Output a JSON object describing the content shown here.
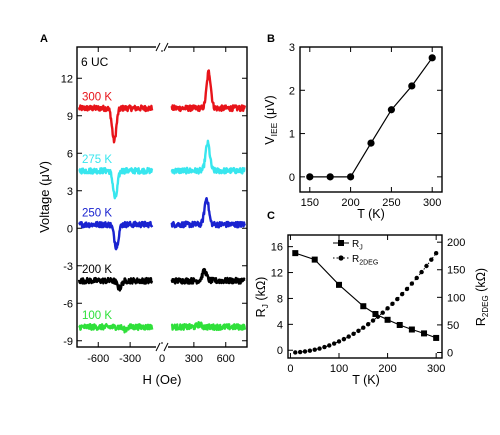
{
  "chart_data": [
    {
      "panel": "A",
      "type": "line",
      "annotation": "6 UC",
      "xlabel": "H (Oe)",
      "ylabel": "Voltage (μV)",
      "xlim": [
        -800,
        800
      ],
      "ylim": [
        -9.5,
        14.5
      ],
      "x_ticks": [
        -600,
        -300,
        0,
        300,
        600
      ],
      "x_tick_labels": [
        "-600",
        "-300",
        "0",
        "300",
        "600"
      ],
      "y_ticks": [
        -9,
        -6,
        -3,
        0,
        3,
        6,
        9,
        12
      ],
      "y_tick_labels": [
        "-9",
        "-6",
        "-3",
        "0",
        "3",
        "6",
        "9",
        "12"
      ],
      "axis_break": "//",
      "series": [
        {
          "name": "300 K",
          "color": "#e8141a",
          "baseline": 9.6,
          "dip_x": -450,
          "dip": -2.6,
          "peak_x": 440,
          "peak": 2.9
        },
        {
          "name": "275 K",
          "color": "#38e6ee",
          "baseline": 4.6,
          "dip_x": -440,
          "dip": -2.2,
          "peak_x": 430,
          "peak": 2.2
        },
        {
          "name": "250 K",
          "color": "#1a23d0",
          "baseline": 0.3,
          "dip_x": -430,
          "dip": -1.8,
          "peak_x": 420,
          "peak": 2.1
        },
        {
          "name": "200 K",
          "color": "#000000",
          "baseline": -4.2,
          "dip_x": -400,
          "dip": -0.6,
          "peak_x": 400,
          "peak": 0.8
        },
        {
          "name": "100 K",
          "color": "#2fe03a",
          "baseline": -7.9,
          "dip_x": -350,
          "dip": -0.2,
          "peak_x": 350,
          "peak": 0.2
        }
      ]
    },
    {
      "panel": "B",
      "type": "line",
      "xlabel": "T (K)",
      "ylabel": "V_IEE (μV)",
      "ylabel_main": "V",
      "ylabel_sub": "IEE",
      "ylabel_tail": " (μV)",
      "xlim": [
        138,
        312
      ],
      "ylim": [
        -0.35,
        3.0
      ],
      "x_ticks": [
        150,
        200,
        250,
        300
      ],
      "x_tick_labels": [
        "150",
        "200",
        "250",
        "300"
      ],
      "y_ticks": [
        0,
        1,
        2,
        3
      ],
      "y_tick_labels": [
        "0",
        "1",
        "2",
        "3"
      ],
      "x": [
        150,
        175,
        200,
        225,
        250,
        275,
        300
      ],
      "y": [
        0,
        0,
        0,
        0.78,
        1.55,
        2.1,
        2.75
      ]
    },
    {
      "panel": "C",
      "type": "line",
      "xlabel": "T (K)",
      "ylabel_left": "R_J (kΩ)",
      "ylabel_left_main": "R",
      "ylabel_left_sub": "J",
      "ylabel_left_tail": " (kΩ)",
      "ylabel_right": "R_2DEG (kΩ)",
      "ylabel_right_main": "R",
      "ylabel_right_sub": "2DEG",
      "ylabel_right_tail": " (kΩ)",
      "xlim": [
        -5,
        312
      ],
      "ylim_left": [
        -1.2,
        17.8
      ],
      "ylim_right": [
        -10,
        213
      ],
      "x_ticks": [
        0,
        100,
        200,
        300
      ],
      "x_tick_labels": [
        "0",
        "100",
        "200",
        "300"
      ],
      "y_ticks_left": [
        0,
        4,
        8,
        12,
        16
      ],
      "y_tick_labels_left": [
        "0",
        "4",
        "8",
        "12",
        "16"
      ],
      "y_ticks_right": [
        0,
        50,
        100,
        150,
        200
      ],
      "y_tick_labels_right": [
        "0",
        "50",
        "100",
        "150",
        "200"
      ],
      "legend_position": "top-center",
      "series": [
        {
          "name": "R_J",
          "legend_main": "R",
          "legend_sub": "J",
          "axis": "left",
          "marker": "square",
          "x": [
            10,
            50,
            100,
            150,
            175,
            200,
            225,
            250,
            275,
            300
          ],
          "y": [
            15.0,
            14.0,
            10.1,
            6.8,
            5.6,
            4.7,
            3.9,
            3.2,
            2.6,
            1.9
          ]
        },
        {
          "name": "R_2DEG",
          "legend_main": "R",
          "legend_sub": "2DEG",
          "axis": "right",
          "marker": "circle",
          "x": [
            10,
            20,
            30,
            40,
            50,
            60,
            70,
            80,
            90,
            100,
            110,
            120,
            130,
            140,
            150,
            160,
            170,
            180,
            190,
            200,
            210,
            220,
            230,
            240,
            250,
            260,
            270,
            280,
            290,
            300
          ],
          "y": [
            0,
            0.8,
            1.8,
            3.2,
            5,
            7.2,
            9.8,
            12.8,
            16.2,
            20,
            24.2,
            28.8,
            33.8,
            39.2,
            45,
            51.2,
            57.8,
            64.8,
            72.2,
            80,
            88.2,
            96.8,
            105.8,
            115.2,
            125,
            135.2,
            145.8,
            156.8,
            168.2,
            180
          ]
        }
      ]
    }
  ],
  "panel_letters": {
    "a": "A",
    "b": "B",
    "c": "C"
  }
}
